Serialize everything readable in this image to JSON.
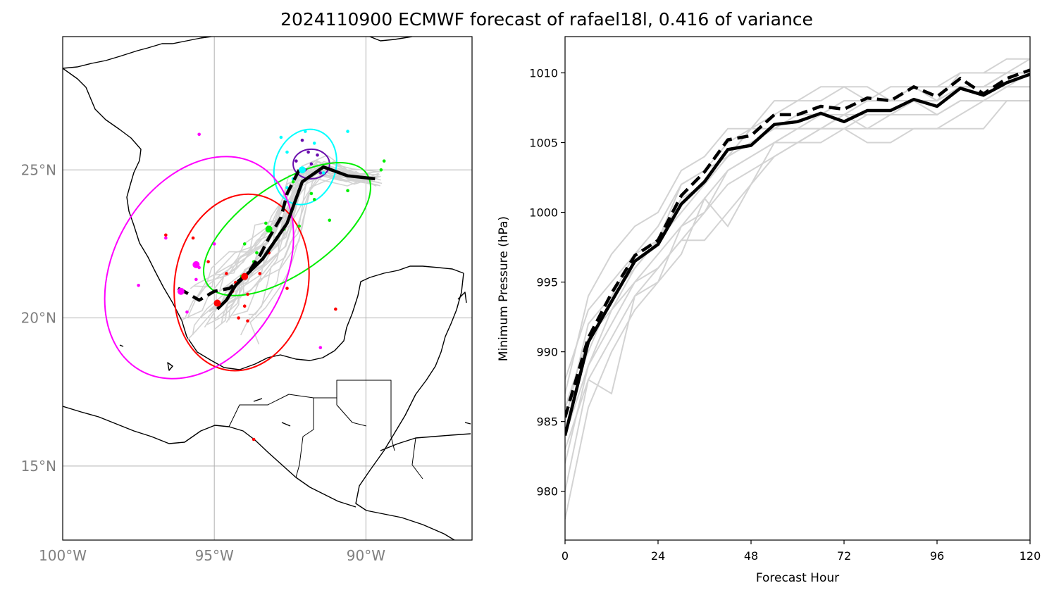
{
  "title": "2024110900 ECMWF forecast of rafael18l, 0.416 of variance",
  "colors": {
    "ensemble": "#d3d3d3",
    "mean_track": "#000000",
    "coast": "#000000",
    "grid": "#b0b0b0",
    "ellipse_48h": "#ff00ff",
    "ellipse_36h": "#ff0000",
    "ellipse_24h": "#00ee00",
    "ellipse_12h": "#00ffff",
    "ellipse_0h": "#6a0dad"
  },
  "chart_data": [
    {
      "type": "scatter",
      "subtype": "map-track",
      "title": "",
      "xlim": [
        -100.0,
        -86.5
      ],
      "ylim": [
        12.5,
        29.5
      ],
      "grid": true,
      "xticks": [
        -100,
        -95,
        -90
      ],
      "xticklabels": [
        "100°W",
        "95°W",
        "90°W"
      ],
      "yticks": [
        15,
        20,
        25
      ],
      "yticklabels": [
        "15°N",
        "20°N",
        "25°N"
      ],
      "tracks": [
        {
          "name": "",
          "style": "solid",
          "lon": [
            -89.7,
            -90.6,
            -91.4,
            -92.1,
            -92.6,
            -93.0,
            -93.4,
            -93.8,
            -94.3,
            -94.6,
            -94.9
          ],
          "lat": [
            24.7,
            24.8,
            25.1,
            24.6,
            23.2,
            22.6,
            22.0,
            21.6,
            21.1,
            20.6,
            20.3
          ]
        },
        {
          "name": "",
          "style": "dashed",
          "lon": [
            -92.2,
            -92.6,
            -92.8,
            -93.2,
            -93.5,
            -93.9,
            -94.5,
            -95.0,
            -95.5,
            -96.0,
            -96.2
          ],
          "lat": [
            25.0,
            24.2,
            23.4,
            22.7,
            22.1,
            21.5,
            21.0,
            20.9,
            20.6,
            20.9,
            21.0
          ]
        }
      ],
      "ellipses": [
        {
          "hour": 0,
          "color": "#6a0dad",
          "center": [
            -91.8,
            25.2
          ],
          "semi_axes": [
            0.6,
            0.5
          ],
          "angle_deg": 0
        },
        {
          "hour": 12,
          "color": "#00ffff",
          "center": [
            -92.0,
            25.1
          ],
          "semi_axes": [
            1.0,
            1.3
          ],
          "angle_deg": -20
        },
        {
          "hour": 24,
          "color": "#00ee00",
          "center": [
            -92.6,
            23.0
          ],
          "semi_axes": [
            3.2,
            1.5
          ],
          "angle_deg": 35
        },
        {
          "hour": 36,
          "color": "#ff0000",
          "center": [
            -94.1,
            21.2
          ],
          "semi_axes": [
            2.2,
            3.0
          ],
          "angle_deg": -10
        },
        {
          "hour": 48,
          "color": "#ff00ff",
          "center": [
            -95.5,
            21.7
          ],
          "semi_axes": [
            2.8,
            4.0
          ],
          "angle_deg": -30
        }
      ],
      "points": [
        {
          "hour": 0,
          "color": "#6a0dad",
          "lon": [
            -91.8,
            -91.6,
            -92.0,
            -91.9,
            -92.3,
            -91.5,
            -92.1
          ],
          "lat": [
            25.2,
            25.5,
            25.0,
            25.6,
            25.3,
            24.9,
            26.0
          ]
        },
        {
          "hour": 12,
          "color": "#00ffff",
          "lon": [
            -92.1,
            -92.4,
            -92.6,
            -91.7,
            -92.0,
            -92.8,
            -91.4,
            -92.6,
            -90.6
          ],
          "lat": [
            25.0,
            24.7,
            25.6,
            25.9,
            26.3,
            26.1,
            24.9,
            24.4,
            26.3
          ]
        },
        {
          "hour": 24,
          "color": "#00ee00",
          "lon": [
            -92.7,
            -93.0,
            -93.3,
            -94.0,
            -93.6,
            -92.4,
            -91.7,
            -91.2,
            -92.2,
            -91.8,
            -93.7,
            -94.1,
            -90.6,
            -89.4,
            -89.5
          ],
          "lat": [
            23.0,
            22.6,
            23.2,
            22.5,
            22.2,
            24.6,
            24.0,
            23.3,
            23.1,
            24.2,
            21.9,
            21.4,
            24.3,
            25.3,
            25.0
          ]
        },
        {
          "hour": 36,
          "color": "#ff0000",
          "lon": [
            -94.6,
            -94.3,
            -94.9,
            -95.2,
            -93.9,
            -93.5,
            -93.2,
            -94.0,
            -92.6,
            -95.7,
            -96.6,
            -94.4,
            -94.2,
            -93.9,
            -91.0,
            -93.7
          ],
          "lat": [
            21.5,
            21.2,
            20.5,
            21.9,
            20.8,
            21.5,
            22.2,
            20.4,
            21.0,
            22.7,
            22.8,
            20.9,
            20.0,
            19.9,
            20.3,
            15.9
          ]
        },
        {
          "hour": 48,
          "color": "#ff00ff",
          "lon": [
            -95.5,
            -95.6,
            -96.1,
            -96.6,
            -95.0,
            -97.5,
            -95.5,
            -95.9,
            -91.5
          ],
          "lat": [
            21.7,
            21.3,
            20.9,
            22.7,
            22.5,
            21.1,
            26.2,
            20.2,
            19.0
          ]
        }
      ]
    },
    {
      "type": "line",
      "title": "",
      "xlabel": "Forecast Hour",
      "ylabel": "Minimum Pressure (hPa)",
      "xlim": [
        0,
        120
      ],
      "ylim": [
        976.5,
        1012.6
      ],
      "grid": false,
      "xticks": [
        0,
        24,
        48,
        72,
        96,
        120
      ],
      "yticks": [
        980,
        985,
        990,
        995,
        1000,
        1005,
        1010
      ],
      "x": [
        0,
        6,
        12,
        18,
        24,
        30,
        36,
        42,
        48,
        54,
        60,
        66,
        72,
        78,
        84,
        90,
        96,
        102,
        108,
        114,
        120
      ],
      "series": [
        {
          "style": "solid",
          "color": "#000000",
          "values": [
            984.0,
            990.7,
            993.6,
            996.5,
            997.7,
            1000.6,
            1002.2,
            1004.5,
            1004.8,
            1006.3,
            1006.5,
            1007.1,
            1006.5,
            1007.3,
            1007.3,
            1008.1,
            1007.6,
            1008.9,
            1008.4,
            1009.3,
            1009.9
          ]
        },
        {
          "style": "dashed",
          "color": "#000000",
          "values": [
            985.3,
            991.0,
            994.2,
            996.9,
            998.0,
            1001.2,
            1002.9,
            1005.2,
            1005.5,
            1007.0,
            1007.0,
            1007.6,
            1007.4,
            1008.2,
            1008.0,
            1009.0,
            1008.3,
            1009.6,
            1008.5,
            1009.6,
            1010.2
          ]
        },
        {
          "style": "ensemble",
          "color": "#d3d3d3",
          "values": [
            986.0,
            991.0,
            993.0,
            996.0,
            998.0,
            1001.0,
            1002.0,
            1004.0,
            1005.0,
            1006.0,
            1007.0,
            1007.0,
            1008.0,
            1008.0,
            1008.0,
            1009.0,
            1008.0,
            1009.0,
            1009.0,
            1010.0,
            1010.0
          ]
        },
        {
          "style": "ensemble",
          "color": "#d3d3d3",
          "values": [
            982.0,
            989.0,
            992.0,
            995.0,
            997.0,
            999.0,
            1001.0,
            1003.0,
            1004.0,
            1005.0,
            1006.0,
            1006.0,
            1007.0,
            1006.0,
            1007.0,
            1007.0,
            1007.0,
            1008.0,
            1008.0,
            1009.0,
            1009.0
          ]
        },
        {
          "style": "ensemble",
          "color": "#d3d3d3",
          "values": [
            988.0,
            993.0,
            995.0,
            997.0,
            999.0,
            1002.0,
            1003.0,
            1005.0,
            1006.0,
            1007.0,
            1008.0,
            1008.0,
            1009.0,
            1008.0,
            1008.0,
            1009.0,
            1009.0,
            1010.0,
            1010.0,
            1011.0,
            1011.0
          ]
        },
        {
          "style": "ensemble",
          "color": "#d3d3d3",
          "values": [
            980.0,
            988.0,
            991.0,
            994.0,
            996.0,
            998.0,
            1000.0,
            1002.0,
            1003.0,
            1004.0,
            1005.0,
            1005.0,
            1006.0,
            1006.0,
            1006.0,
            1006.0,
            1006.0,
            1006.0,
            1006.0,
            1008.0,
            1008.0
          ]
        },
        {
          "style": "ensemble",
          "color": "#d3d3d3",
          "values": [
            985.0,
            992.0,
            994.0,
            996.0,
            998.0,
            1000.0,
            1002.0,
            1004.0,
            1006.0,
            1006.0,
            1007.0,
            1007.0,
            1007.0,
            1008.0,
            1008.0,
            1008.0,
            1008.0,
            1009.0,
            1009.0,
            1009.0,
            1010.0
          ]
        },
        {
          "style": "ensemble",
          "color": "#d3d3d3",
          "values": [
            983.0,
            988.0,
            987.0,
            994.0,
            995.0,
            997.0,
            1001.0,
            999.0,
            1002.0,
            1005.0,
            1005.0,
            1006.0,
            1006.0,
            1005.0,
            1005.0,
            1006.0,
            1006.0,
            1007.0,
            1008.0,
            1008.0,
            1008.0
          ]
        },
        {
          "style": "ensemble",
          "color": "#d3d3d3",
          "values": [
            987.0,
            994.0,
            997.0,
            999.0,
            1000.0,
            1003.0,
            1004.0,
            1006.0,
            1006.0,
            1008.0,
            1008.0,
            1009.0,
            1009.0,
            1009.0,
            1008.0,
            1009.0,
            1008.0,
            1010.0,
            1010.0,
            1010.0,
            1011.0
          ]
        },
        {
          "style": "ensemble",
          "color": "#d3d3d3",
          "values": [
            978.0,
            986.0,
            990.0,
            993.0,
            995.0,
            999.0,
            1000.0,
            1003.0,
            1004.0,
            1005.0,
            1006.0,
            1006.0,
            1007.0,
            1007.0,
            1007.0,
            1008.0,
            1007.0,
            1008.0,
            1008.0,
            1009.0,
            1009.0
          ]
        },
        {
          "style": "ensemble",
          "color": "#d3d3d3",
          "values": [
            984.0,
            989.0,
            993.0,
            995.0,
            996.0,
            998.0,
            998.0,
            1000.0,
            1002.0,
            1004.0,
            1005.0,
            1006.0,
            1006.0,
            1007.0,
            1007.0,
            1008.0,
            1008.0,
            1009.0,
            1009.0,
            1010.0,
            1010.0
          ]
        },
        {
          "style": "ensemble",
          "color": "#d3d3d3",
          "values": [
            986.0,
            990.0,
            994.0,
            997.0,
            998.0,
            1002.0,
            1003.0,
            1004.0,
            1005.0,
            1006.0,
            1006.0,
            1007.0,
            1008.0,
            1008.0,
            1009.0,
            1009.0,
            1009.0,
            1009.0,
            1009.0,
            1010.0,
            1010.0
          ]
        }
      ]
    }
  ]
}
